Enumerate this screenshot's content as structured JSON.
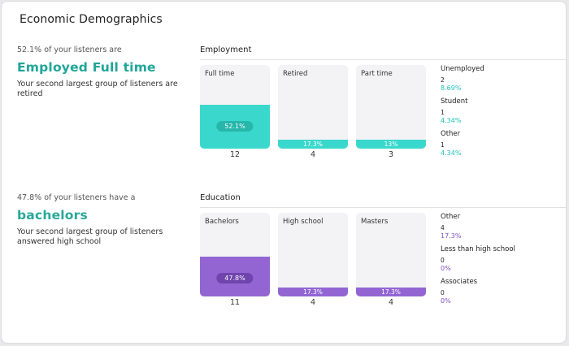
{
  "title": "Economic Demographics",
  "employment": {
    "intro": "52.1% of your listeners are",
    "headline": "Employed Full time",
    "sub": "Your second largest group of listeners are retired",
    "section_label": "Employment",
    "bars": [
      {
        "label": "Full time",
        "percent_text": "52.1%",
        "percent": 52.1,
        "count": "12"
      },
      {
        "label": "Retired",
        "percent_text": "17.3%",
        "percent": 17.3,
        "count": "4"
      },
      {
        "label": "Part time",
        "percent_text": "13%",
        "percent": 13,
        "count": "3"
      }
    ],
    "others": [
      {
        "label": "Unemployed",
        "count": "2",
        "percent": "8.69%"
      },
      {
        "label": "Student",
        "count": "1",
        "percent": "4.34%"
      },
      {
        "label": "Other",
        "count": "1",
        "percent": "4.34%"
      }
    ]
  },
  "education": {
    "intro": "47.8% of your listeners have a",
    "headline": "bachelors",
    "sub": "Your second largest group of listeners answered high school",
    "section_label": "Education",
    "bars": [
      {
        "label": "Bachelors",
        "percent_text": "47.8%",
        "percent": 47.8,
        "count": "11"
      },
      {
        "label": "High school",
        "percent_text": "17.3%",
        "percent": 17.3,
        "count": "4"
      },
      {
        "label": "Masters",
        "percent_text": "17.3%",
        "percent": 17.3,
        "count": "4"
      }
    ],
    "others": [
      {
        "label": "Other",
        "count": "4",
        "percent": "17.3%"
      },
      {
        "label": "Less than high school",
        "count": "0",
        "percent": "0%"
      },
      {
        "label": "Associates",
        "count": "0",
        "percent": "0%"
      }
    ]
  },
  "colors": {
    "employment_accent": "#1fa697",
    "employment_bar": "#3ad8cc",
    "education_bar": "#9265d3",
    "education_pct": "#7a52c4"
  }
}
